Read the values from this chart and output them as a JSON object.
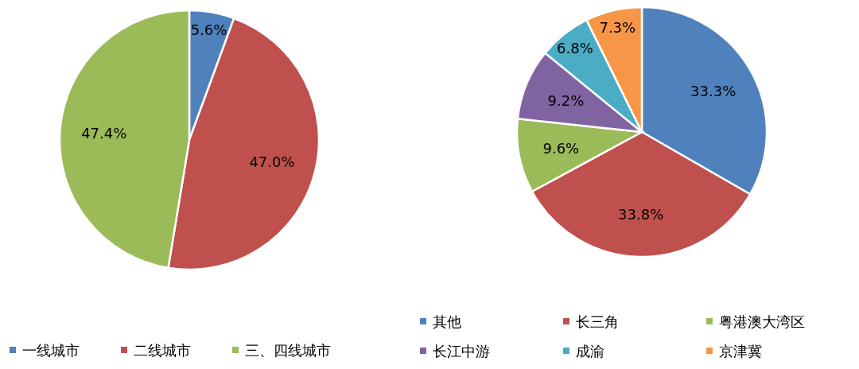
{
  "chart_data": [
    {
      "type": "pie",
      "categories": [
        "一线城市",
        "二线城市",
        "三、四线城市"
      ],
      "values": [
        5.6,
        47.0,
        47.4
      ],
      "value_labels": [
        "5.6%",
        "47.0%",
        "47.4%"
      ],
      "colors": [
        "#4f81bd",
        "#c0504d",
        "#9bbb59"
      ],
      "legend": "bottom"
    },
    {
      "type": "pie",
      "categories": [
        "其他",
        "长三角",
        "粤港澳大湾区",
        "长江中游",
        "成渝",
        "京津冀"
      ],
      "values": [
        33.3,
        33.8,
        9.6,
        9.2,
        6.8,
        7.3
      ],
      "value_labels": [
        "33.3%",
        "33.8%",
        "9.6%",
        "9.2%",
        "6.8%",
        "7.3%"
      ],
      "colors": [
        "#4f81bd",
        "#c0504d",
        "#9bbb59",
        "#8064a2",
        "#4bacc6",
        "#f79646"
      ],
      "legend": "bottom"
    }
  ]
}
